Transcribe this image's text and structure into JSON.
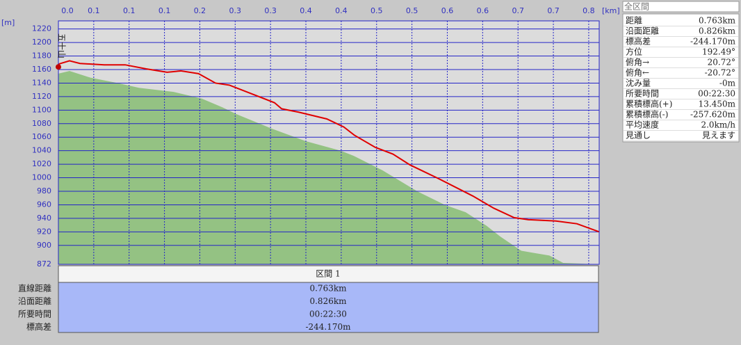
{
  "chart_data": {
    "type": "area",
    "y_unit": "[m]",
    "x_unit": "[km]",
    "annotation": "五十山",
    "xlim": [
      0,
      0.826
    ],
    "ylim": [
      872,
      1232
    ],
    "xticks": [
      {
        "value": 0,
        "label": "0.0"
      },
      {
        "value": 0.054,
        "label": "0.1"
      },
      {
        "value": 0.108,
        "label": "0.1"
      },
      {
        "value": 0.162,
        "label": "0.1"
      },
      {
        "value": 0.216,
        "label": "0.2"
      },
      {
        "value": 0.27,
        "label": "0.3"
      },
      {
        "value": 0.324,
        "label": "0.3"
      },
      {
        "value": 0.378,
        "label": "0.4"
      },
      {
        "value": 0.432,
        "label": "0.4"
      },
      {
        "value": 0.486,
        "label": "0.5"
      },
      {
        "value": 0.54,
        "label": "0.5"
      },
      {
        "value": 0.594,
        "label": "0.6"
      },
      {
        "value": 0.648,
        "label": "0.6"
      },
      {
        "value": 0.702,
        "label": "0.7"
      },
      {
        "value": 0.756,
        "label": "0.7"
      },
      {
        "value": 0.81,
        "label": "0.8"
      }
    ],
    "yticks": [
      872,
      900,
      920,
      940,
      960,
      980,
      1000,
      1020,
      1040,
      1060,
      1080,
      1100,
      1120,
      1140,
      1160,
      1180,
      1200,
      1220
    ],
    "series": [
      {
        "color": "#94c283",
        "x": [
          0,
          0.017,
          0.049,
          0.091,
          0.123,
          0.176,
          0.219,
          0.251,
          0.272,
          0.325,
          0.378,
          0.431,
          0.452,
          0.495,
          0.548,
          0.59,
          0.622,
          0.654,
          0.675,
          0.707,
          0.75,
          0.771,
          0.826
        ],
        "values": [
          1154,
          1158,
          1148,
          1140,
          1133,
          1127,
          1117,
          1104,
          1094,
          1073,
          1054,
          1040,
          1032,
          1011,
          980,
          960,
          949,
          929,
          913,
          892,
          885,
          874,
          872
        ]
      },
      {
        "color": "#e00000",
        "x": [
          0,
          0.017,
          0.033,
          0.07,
          0.102,
          0.134,
          0.166,
          0.187,
          0.214,
          0.24,
          0.261,
          0.293,
          0.33,
          0.341,
          0.367,
          0.41,
          0.436,
          0.452,
          0.484,
          0.511,
          0.537,
          0.58,
          0.633,
          0.665,
          0.696,
          0.718,
          0.76,
          0.792,
          0.826
        ],
        "values": [
          1168,
          1173,
          1169,
          1167,
          1167,
          1161,
          1156,
          1158,
          1154,
          1140,
          1137,
          1125,
          1111,
          1102,
          1097,
          1087,
          1075,
          1063,
          1045,
          1035,
          1019,
          999,
          973,
          955,
          941,
          938,
          936,
          932,
          920
        ]
      }
    ]
  },
  "info_panel": {
    "title": "全区間",
    "rows": [
      [
        "距離",
        "0.763km"
      ],
      [
        "沿面距離",
        "0.826km"
      ],
      [
        "標高差",
        "-244.170m"
      ],
      [
        "方位",
        "192.49°"
      ],
      [
        "俯角→",
        "20.72°"
      ],
      [
        "俯角←",
        "-20.72°"
      ],
      [
        "沈み量",
        "-0m"
      ],
      [
        "所要時間",
        "00:22:30"
      ],
      [
        "累積標高(+)",
        "13.450m"
      ],
      [
        "累積標高(-)",
        "-257.620m"
      ],
      [
        "平均速度",
        "2.0km/h"
      ],
      [
        "見通し",
        "見えます"
      ]
    ]
  },
  "section_table": {
    "header": "区間 1",
    "rows": [
      [
        "直線距離",
        "0.763km"
      ],
      [
        "沿面距離",
        "0.826km"
      ],
      [
        "所要時間",
        "00:22:30"
      ],
      [
        "標高差",
        "-244.170m"
      ]
    ]
  }
}
